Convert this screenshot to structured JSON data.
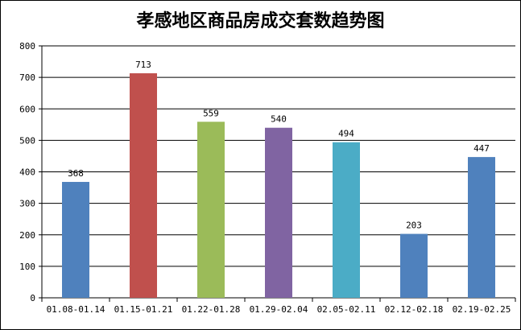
{
  "chart_data": {
    "type": "bar",
    "title": "孝感地区商品房成交套数趋势图",
    "xlabel": "",
    "ylabel": "",
    "ylim": [
      0,
      800
    ],
    "yticks": [
      0,
      100,
      200,
      300,
      400,
      500,
      600,
      700,
      800
    ],
    "grid": true,
    "categories": [
      "01.08-01.14",
      "01.15-01.21",
      "01.22-01.28",
      "01.29-02.04",
      "02.05-02.11",
      "02.12-02.18",
      "02.19-02.25"
    ],
    "values": [
      368,
      713,
      559,
      540,
      494,
      203,
      447
    ],
    "colors": [
      "#4F81BD",
      "#C0504D",
      "#9BBB59",
      "#8064A2",
      "#4BACC6",
      "#4F81BD",
      "#4F81BD"
    ]
  }
}
